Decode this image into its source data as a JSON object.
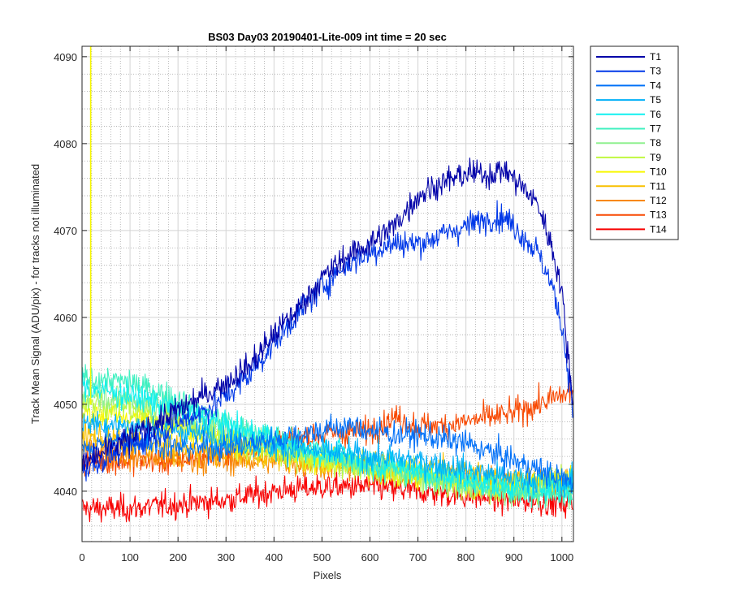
{
  "chart_data": {
    "type": "line",
    "title": "BS03 Day03 20190401-Lite-009 int time = 20 sec",
    "xlabel": "Pixels",
    "ylabel": "Track Mean Signal (ADU/pix) - for tracks not illuminated",
    "xlim": [
      0,
      1024
    ],
    "ylim": [
      4034.2,
      4091.2
    ],
    "x_ticks": [
      0,
      100,
      200,
      300,
      400,
      500,
      600,
      700,
      800,
      900,
      1000
    ],
    "y_ticks": [
      4040,
      4050,
      4060,
      4070,
      4080,
      4090
    ],
    "x_tick_labels": [
      "0",
      "100",
      "200",
      "300",
      "400",
      "500",
      "600",
      "700",
      "800",
      "900",
      "1000"
    ],
    "y_tick_labels": [
      "4040",
      "4050",
      "4060",
      "4070",
      "4080",
      "4090"
    ],
    "grid": true,
    "minor_grid": true,
    "legend_position": "outside-top-right",
    "series": [
      {
        "name": "T1",
        "color": "#0000A8",
        "noise": 1.1,
        "x": [
          0,
          300,
          350,
          400,
          450,
          500,
          550,
          600,
          650,
          700,
          750,
          800,
          850,
          880,
          900,
          950,
          980,
          1000,
          1010,
          1020,
          1023
        ],
        "y": [
          4043,
          4052.5,
          4054.5,
          4058,
          4061,
          4064.5,
          4067,
          4068.5,
          4070.5,
          4074,
          4075.5,
          4076.5,
          4076.5,
          4077,
          4076,
          4073,
          4068,
          4063,
          4057,
          4052,
          4050
        ]
      },
      {
        "name": "T3",
        "color": "#0038E8",
        "noise": 1.1,
        "x": [
          0,
          280,
          300,
          350,
          400,
          450,
          500,
          550,
          600,
          650,
          700,
          750,
          800,
          850,
          880,
          900,
          950,
          980,
          1000,
          1010,
          1020,
          1023
        ],
        "y": [
          4042.5,
          4050,
          4051,
          4053.5,
          4057,
          4060.5,
          4063.5,
          4066,
          4067.5,
          4068.5,
          4068.5,
          4069.5,
          4070.5,
          4071.5,
          4071.5,
          4070.5,
          4067.5,
          4063.5,
          4059,
          4055,
          4051,
          4049
        ]
      },
      {
        "name": "T4",
        "color": "#0070F8",
        "noise": 1.1,
        "x": [
          0,
          100,
          200,
          300,
          400,
          500,
          550,
          600,
          650,
          700,
          750,
          800,
          850,
          900,
          950,
          1000,
          1023
        ],
        "y": [
          4045,
          4046,
          4045,
          4045,
          4046,
          4047,
          4047.5,
          4047,
          4046.5,
          4046.5,
          4046,
          4045.5,
          4044.5,
          4043.5,
          4042.5,
          4041.5,
          4041
        ]
      },
      {
        "name": "T5",
        "color": "#00B0F8",
        "noise": 1.1,
        "x": [
          0,
          100,
          200,
          300,
          400,
          500,
          600,
          700,
          800,
          900,
          1023
        ],
        "y": [
          4048,
          4047.5,
          4047,
          4046,
          4045,
          4044.5,
          4044,
          4043.5,
          4042.5,
          4041.5,
          4041
        ]
      },
      {
        "name": "T6",
        "color": "#10F0F0",
        "noise": 1.1,
        "x": [
          0,
          100,
          200,
          300,
          400,
          500,
          600,
          700,
          800,
          900,
          1023
        ],
        "y": [
          4052,
          4051,
          4049.5,
          4047.5,
          4046,
          4044.5,
          4043.5,
          4042.5,
          4041.5,
          4040.5,
          4040.5
        ]
      },
      {
        "name": "T7",
        "color": "#40F0C0",
        "noise": 1.1,
        "x": [
          0,
          100,
          200,
          300,
          400,
          500,
          600,
          700,
          800,
          900,
          1023
        ],
        "y": [
          4053,
          4052.5,
          4050.5,
          4048,
          4046,
          4044.5,
          4043,
          4042,
          4041,
          4040,
          4039.5
        ]
      },
      {
        "name": "T8",
        "color": "#90F090",
        "noise": 1.1,
        "x": [
          0,
          100,
          200,
          300,
          400,
          500,
          600,
          700,
          800,
          900,
          1023
        ],
        "y": [
          4051.5,
          4050.5,
          4049,
          4047,
          4045.5,
          4044,
          4043,
          4042,
          4041,
          4040,
          4039.5
        ]
      },
      {
        "name": "T9",
        "color": "#C0F840",
        "noise": 1.1,
        "x": [
          0,
          100,
          200,
          300,
          400,
          500,
          600,
          700,
          800,
          900,
          1023
        ],
        "y": [
          4050.5,
          4049.5,
          4048,
          4046,
          4044.5,
          4043.5,
          4042.5,
          4041.5,
          4040.5,
          4040,
          4041.5
        ]
      },
      {
        "name": "T10",
        "color": "#F8F800",
        "noise": 1.1,
        "x": [
          0,
          100,
          200,
          300,
          400,
          500,
          600,
          700,
          800,
          900,
          1023
        ],
        "y": [
          4049,
          4048.5,
          4047.5,
          4046,
          4044.5,
          4043.5,
          4042.5,
          4041.5,
          4041,
          4040.5,
          4041.5
        ]
      },
      {
        "name": "T11",
        "color": "#F8C000",
        "noise": 1.1,
        "x": [
          0,
          100,
          200,
          300,
          400,
          500,
          600,
          700,
          800,
          900,
          1023
        ],
        "y": [
          4046.5,
          4045.5,
          4045,
          4044.5,
          4044,
          4043.5,
          4043,
          4042.5,
          4042,
          4041.5,
          4041
        ]
      },
      {
        "name": "T12",
        "color": "#F88800",
        "noise": 1.1,
        "x": [
          0,
          100,
          200,
          300,
          400,
          500,
          600,
          700,
          800,
          900,
          1023
        ],
        "y": [
          4045,
          4044,
          4043.5,
          4043.5,
          4043.5,
          4043,
          4042.5,
          4042,
          4041.5,
          4041,
          4040.5
        ]
      },
      {
        "name": "T13",
        "color": "#F84800",
        "noise": 1.1,
        "x": [
          0,
          100,
          200,
          300,
          400,
          500,
          600,
          650,
          700,
          750,
          800,
          850,
          900,
          950,
          1000,
          1023
        ],
        "y": [
          4043.5,
          4043.5,
          4043.5,
          4044.5,
          4045.5,
          4046.5,
          4047,
          4048.5,
          4047.5,
          4047.5,
          4048,
          4048.5,
          4049,
          4050,
          4051,
          4051.5
        ]
      },
      {
        "name": "T14",
        "color": "#F80000",
        "noise": 1.1,
        "x": [
          0,
          100,
          200,
          300,
          400,
          500,
          600,
          700,
          800,
          900,
          1023
        ],
        "y": [
          4038,
          4038,
          4038.5,
          4039,
          4040,
          4040.5,
          4040.5,
          4040,
          4039.5,
          4039,
          4038.5
        ]
      }
    ],
    "vertical_line": {
      "x": 18,
      "color": "#F8F800"
    }
  }
}
